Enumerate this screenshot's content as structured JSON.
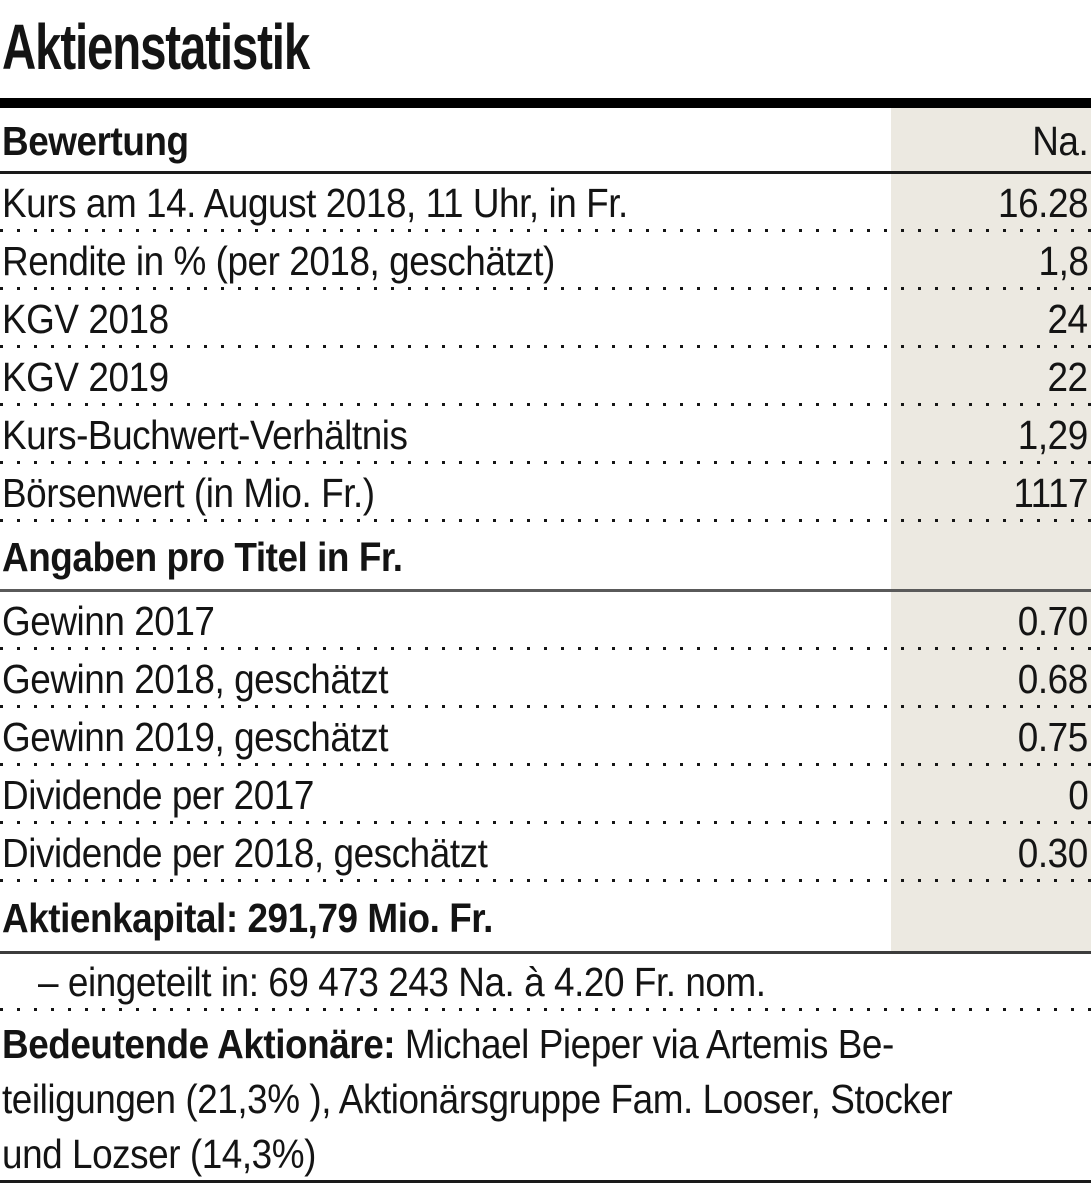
{
  "title": "Aktienstatistik",
  "colors": {
    "value_column_bg": "#ECE9E1",
    "text": "#141414",
    "top_rule": "#000000",
    "section_rule": "#5a5a5a"
  },
  "table": {
    "header": {
      "label": "Bewertung",
      "unit": "Na."
    },
    "valuation": [
      {
        "label": "Kurs am 14. August 2018, 11 Uhr, in Fr.",
        "value": "16.28"
      },
      {
        "label": "Rendite in % (per 2018, geschätzt)",
        "value": "1,8"
      },
      {
        "label": "KGV 2018",
        "value": "24"
      },
      {
        "label": "KGV 2019",
        "value": "22"
      },
      {
        "label": "Kurs-Buchwert-Verhältnis",
        "value": "1,29"
      },
      {
        "label": "Börsenwert (in Mio. Fr.)",
        "value": "1117"
      }
    ],
    "per_share_header": "Angaben pro Titel in Fr.",
    "per_share": [
      {
        "label": "Gewinn 2017",
        "value": "0.70"
      },
      {
        "label": "Gewinn 2018, geschätzt",
        "value": "0.68"
      },
      {
        "label": "Gewinn 2019, geschätzt",
        "value": "0.75"
      },
      {
        "label": "Dividende per 2017",
        "value": "0"
      },
      {
        "label": "Dividende per 2018, geschätzt",
        "value": "0.30"
      }
    ],
    "capital_line": "Aktienkapital: 291,79 Mio. Fr.",
    "capital_detail": "– eingeteilt in: 69 473 243 Na. à 4.20 Fr. nom.",
    "shareholders_label": "Bedeutende Aktionäre:",
    "shareholders_line1_rest": " Michael Pieper via Artemis Be-",
    "shareholders_line2": "teiligungen (21,3% ), Aktionärsgruppe Fam. Looser, Stocker",
    "shareholders_line3": "und Lozser (14,3%)"
  }
}
